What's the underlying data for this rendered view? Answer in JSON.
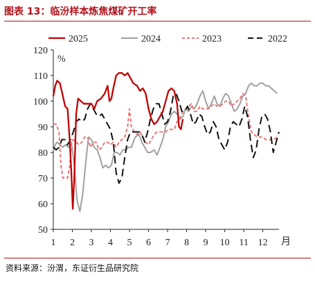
{
  "page": {
    "title": "图表 13：临汾样本炼焦煤矿开工率",
    "source": "资料来源：汾渭，东证衍生品研究院"
  },
  "chart_data": {
    "type": "line",
    "xlabel": "月",
    "ylabel": "%",
    "ylim": [
      50,
      120
    ],
    "xlim": [
      1,
      12.85
    ],
    "x_ticks": [
      1,
      2,
      3,
      4,
      5,
      6,
      7,
      8,
      9,
      10,
      11,
      12
    ],
    "y_ticks": [
      50,
      60,
      70,
      80,
      90,
      100,
      110,
      120
    ],
    "grid": false,
    "legend_position": "top",
    "series": [
      {
        "name": "2025",
        "color": "#c00000",
        "dash": "solid",
        "points": [
          [
            1.0,
            102
          ],
          [
            1.1,
            106
          ],
          [
            1.2,
            108
          ],
          [
            1.35,
            107
          ],
          [
            1.5,
            102
          ],
          [
            1.62,
            98
          ],
          [
            1.75,
            97
          ],
          [
            1.85,
            86
          ],
          [
            1.95,
            72
          ],
          [
            2.02,
            58
          ],
          [
            2.1,
            70
          ],
          [
            2.2,
            95
          ],
          [
            2.3,
            101
          ],
          [
            2.45,
            100
          ],
          [
            2.6,
            99
          ],
          [
            2.8,
            99
          ],
          [
            3.0,
            99
          ],
          [
            3.15,
            97
          ],
          [
            3.3,
            100
          ],
          [
            3.5,
            101
          ],
          [
            3.7,
            103
          ],
          [
            3.85,
            106
          ],
          [
            3.95,
            100
          ],
          [
            4.05,
            101
          ],
          [
            4.15,
            105
          ],
          [
            4.3,
            110
          ],
          [
            4.45,
            111
          ],
          [
            4.6,
            111
          ],
          [
            4.75,
            110
          ],
          [
            4.9,
            111
          ],
          [
            5.05,
            109
          ],
          [
            5.2,
            107
          ],
          [
            5.4,
            106
          ],
          [
            5.55,
            104
          ],
          [
            5.7,
            105
          ],
          [
            5.85,
            103
          ],
          [
            6.0,
            97
          ],
          [
            6.15,
            93
          ],
          [
            6.3,
            91
          ],
          [
            6.45,
            92
          ],
          [
            6.6,
            94
          ],
          [
            6.75,
            96
          ],
          [
            6.9,
            100
          ],
          [
            7.05,
            104
          ],
          [
            7.2,
            105
          ],
          [
            7.35,
            104
          ],
          [
            7.5,
            99
          ],
          [
            7.6,
            90
          ],
          [
            7.7,
            89
          ],
          [
            7.8,
            93
          ]
        ]
      },
      {
        "name": "2024",
        "color": "#a0a0a0",
        "dash": "solid",
        "points": [
          [
            1.0,
            81
          ],
          [
            1.1,
            83
          ],
          [
            1.2,
            84
          ],
          [
            1.35,
            83
          ],
          [
            1.5,
            82
          ],
          [
            1.65,
            83
          ],
          [
            1.8,
            82
          ],
          [
            1.95,
            84
          ],
          [
            2.1,
            75
          ],
          [
            2.25,
            61
          ],
          [
            2.4,
            57
          ],
          [
            2.55,
            64
          ],
          [
            2.7,
            76
          ],
          [
            2.85,
            86
          ],
          [
            3.0,
            85
          ],
          [
            3.15,
            82
          ],
          [
            3.3,
            81
          ],
          [
            3.45,
            78
          ],
          [
            3.6,
            74
          ],
          [
            3.75,
            75
          ],
          [
            3.9,
            74
          ],
          [
            4.05,
            75
          ],
          [
            4.2,
            80
          ],
          [
            4.35,
            80
          ],
          [
            4.5,
            79
          ],
          [
            4.65,
            81
          ],
          [
            4.8,
            81
          ],
          [
            4.95,
            82
          ],
          [
            5.1,
            82
          ],
          [
            5.3,
            86
          ],
          [
            5.5,
            87
          ],
          [
            5.65,
            84
          ],
          [
            5.8,
            82
          ],
          [
            5.95,
            80
          ],
          [
            6.1,
            80
          ],
          [
            6.3,
            81
          ],
          [
            6.45,
            79
          ],
          [
            6.6,
            82
          ],
          [
            6.75,
            85
          ],
          [
            6.9,
            90
          ],
          [
            7.05,
            92
          ],
          [
            7.2,
            95
          ],
          [
            7.35,
            96
          ],
          [
            7.5,
            95
          ],
          [
            7.65,
            93
          ],
          [
            7.8,
            94
          ],
          [
            7.95,
            97
          ],
          [
            8.1,
            96
          ],
          [
            8.25,
            98
          ],
          [
            8.4,
            97
          ],
          [
            8.55,
            99
          ],
          [
            8.7,
            102
          ],
          [
            8.85,
            104
          ],
          [
            9.0,
            100
          ],
          [
            9.15,
            97
          ],
          [
            9.3,
            99
          ],
          [
            9.45,
            102
          ],
          [
            9.6,
            99
          ],
          [
            9.75,
            98
          ],
          [
            9.9,
            101
          ],
          [
            10.05,
            103
          ],
          [
            10.2,
            102
          ],
          [
            10.35,
            99
          ],
          [
            10.5,
            96
          ],
          [
            10.65,
            97
          ],
          [
            10.8,
            99
          ],
          [
            10.95,
            102
          ],
          [
            11.1,
            103
          ],
          [
            11.25,
            106
          ],
          [
            11.4,
            107
          ],
          [
            11.55,
            106
          ],
          [
            11.7,
            106
          ],
          [
            11.85,
            107
          ],
          [
            12.0,
            107
          ],
          [
            12.15,
            106
          ],
          [
            12.3,
            106
          ],
          [
            12.45,
            105
          ],
          [
            12.6,
            104
          ],
          [
            12.75,
            103
          ]
        ]
      },
      {
        "name": "2023",
        "color": "#e87878",
        "dash": "short",
        "points": [
          [
            1.0,
            91
          ],
          [
            1.15,
            91
          ],
          [
            1.3,
            88
          ],
          [
            1.4,
            75
          ],
          [
            1.5,
            70
          ],
          [
            1.65,
            70
          ],
          [
            1.75,
            70
          ],
          [
            1.85,
            74
          ],
          [
            1.95,
            84
          ],
          [
            2.05,
            85
          ],
          [
            2.2,
            84
          ],
          [
            2.35,
            83
          ],
          [
            2.5,
            84
          ],
          [
            2.65,
            86
          ],
          [
            2.8,
            86
          ],
          [
            2.95,
            82
          ],
          [
            3.1,
            84
          ],
          [
            3.25,
            84
          ],
          [
            3.4,
            81
          ],
          [
            3.55,
            82
          ],
          [
            3.7,
            84
          ],
          [
            3.85,
            84
          ],
          [
            4.0,
            83
          ],
          [
            4.15,
            84
          ],
          [
            4.3,
            82
          ],
          [
            4.45,
            84
          ],
          [
            4.6,
            85
          ],
          [
            4.75,
            86
          ],
          [
            4.9,
            90
          ],
          [
            5.0,
            97
          ],
          [
            5.1,
            90
          ],
          [
            5.25,
            88
          ],
          [
            5.4,
            87
          ],
          [
            5.55,
            88
          ],
          [
            5.7,
            86
          ],
          [
            5.85,
            84
          ],
          [
            6.0,
            83
          ],
          [
            6.15,
            85
          ],
          [
            6.3,
            87
          ],
          [
            6.45,
            88
          ],
          [
            6.6,
            88
          ],
          [
            6.75,
            88
          ],
          [
            6.9,
            88
          ],
          [
            7.05,
            89
          ],
          [
            7.2,
            89
          ],
          [
            7.35,
            89
          ],
          [
            7.5,
            92
          ],
          [
            7.65,
            93
          ],
          [
            7.8,
            96
          ],
          [
            7.95,
            97
          ],
          [
            8.1,
            98
          ],
          [
            8.25,
            99
          ],
          [
            8.4,
            96
          ],
          [
            8.55,
            96
          ],
          [
            8.7,
            98
          ],
          [
            8.85,
            97
          ],
          [
            9.0,
            97
          ],
          [
            9.15,
            97
          ],
          [
            9.3,
            98
          ],
          [
            9.45,
            99
          ],
          [
            9.6,
            98
          ],
          [
            9.75,
            98
          ],
          [
            9.9,
            99
          ],
          [
            10.05,
            100
          ],
          [
            10.2,
            100
          ],
          [
            10.35,
            98
          ],
          [
            10.5,
            99
          ],
          [
            10.65,
            100
          ],
          [
            10.8,
            101
          ],
          [
            10.95,
            103
          ],
          [
            11.1,
            102
          ],
          [
            11.25,
            94
          ],
          [
            11.4,
            88
          ],
          [
            11.55,
            87
          ],
          [
            11.7,
            86
          ],
          [
            11.85,
            86
          ],
          [
            12.0,
            86
          ],
          [
            12.15,
            85
          ],
          [
            12.3,
            85
          ],
          [
            12.45,
            85
          ],
          [
            12.6,
            85
          ],
          [
            12.75,
            86
          ]
        ]
      },
      {
        "name": "2022",
        "color": "#111111",
        "dash": "long",
        "points": [
          [
            1.0,
            82
          ],
          [
            1.15,
            81
          ],
          [
            1.3,
            82
          ],
          [
            1.45,
            85
          ],
          [
            1.6,
            85
          ],
          [
            1.75,
            83
          ],
          [
            1.9,
            85
          ],
          [
            2.05,
            88
          ],
          [
            2.2,
            92
          ],
          [
            2.35,
            93
          ],
          [
            2.5,
            92
          ],
          [
            2.65,
            93
          ],
          [
            2.8,
            97
          ],
          [
            2.95,
            99
          ],
          [
            3.1,
            97
          ],
          [
            3.25,
            95
          ],
          [
            3.4,
            94
          ],
          [
            3.55,
            95
          ],
          [
            3.7,
            93
          ],
          [
            3.85,
            91
          ],
          [
            4.0,
            89
          ],
          [
            4.15,
            84
          ],
          [
            4.3,
            72
          ],
          [
            4.45,
            68
          ],
          [
            4.6,
            70
          ],
          [
            4.75,
            78
          ],
          [
            4.9,
            85
          ],
          [
            5.05,
            88
          ],
          [
            5.2,
            88
          ],
          [
            5.35,
            88
          ],
          [
            5.5,
            88
          ],
          [
            5.65,
            87
          ],
          [
            5.8,
            84
          ],
          [
            5.95,
            88
          ],
          [
            6.1,
            93
          ],
          [
            6.25,
            97
          ],
          [
            6.4,
            99
          ],
          [
            6.55,
            99
          ],
          [
            6.7,
            95
          ],
          [
            6.85,
            91
          ],
          [
            7.0,
            92
          ],
          [
            7.15,
            96
          ],
          [
            7.3,
            102
          ],
          [
            7.45,
            103
          ],
          [
            7.6,
            100
          ],
          [
            7.75,
            96
          ],
          [
            7.9,
            96
          ],
          [
            8.05,
            98
          ],
          [
            8.2,
            95
          ],
          [
            8.35,
            91
          ],
          [
            8.5,
            92
          ],
          [
            8.65,
            95
          ],
          [
            8.8,
            94
          ],
          [
            8.95,
            90
          ],
          [
            9.1,
            87
          ],
          [
            9.25,
            88
          ],
          [
            9.4,
            92
          ],
          [
            9.55,
            90
          ],
          [
            9.7,
            85
          ],
          [
            9.85,
            83
          ],
          [
            10.0,
            81
          ],
          [
            10.15,
            84
          ],
          [
            10.3,
            90
          ],
          [
            10.45,
            92
          ],
          [
            10.6,
            91
          ],
          [
            10.75,
            90
          ],
          [
            10.9,
            93
          ],
          [
            11.05,
            98
          ],
          [
            11.2,
            94
          ],
          [
            11.35,
            85
          ],
          [
            11.5,
            78
          ],
          [
            11.65,
            81
          ],
          [
            11.8,
            89
          ],
          [
            11.95,
            94
          ],
          [
            12.1,
            95
          ],
          [
            12.25,
            93
          ],
          [
            12.4,
            88
          ],
          [
            12.55,
            80
          ],
          [
            12.7,
            84
          ],
          [
            12.85,
            88
          ]
        ]
      }
    ]
  }
}
